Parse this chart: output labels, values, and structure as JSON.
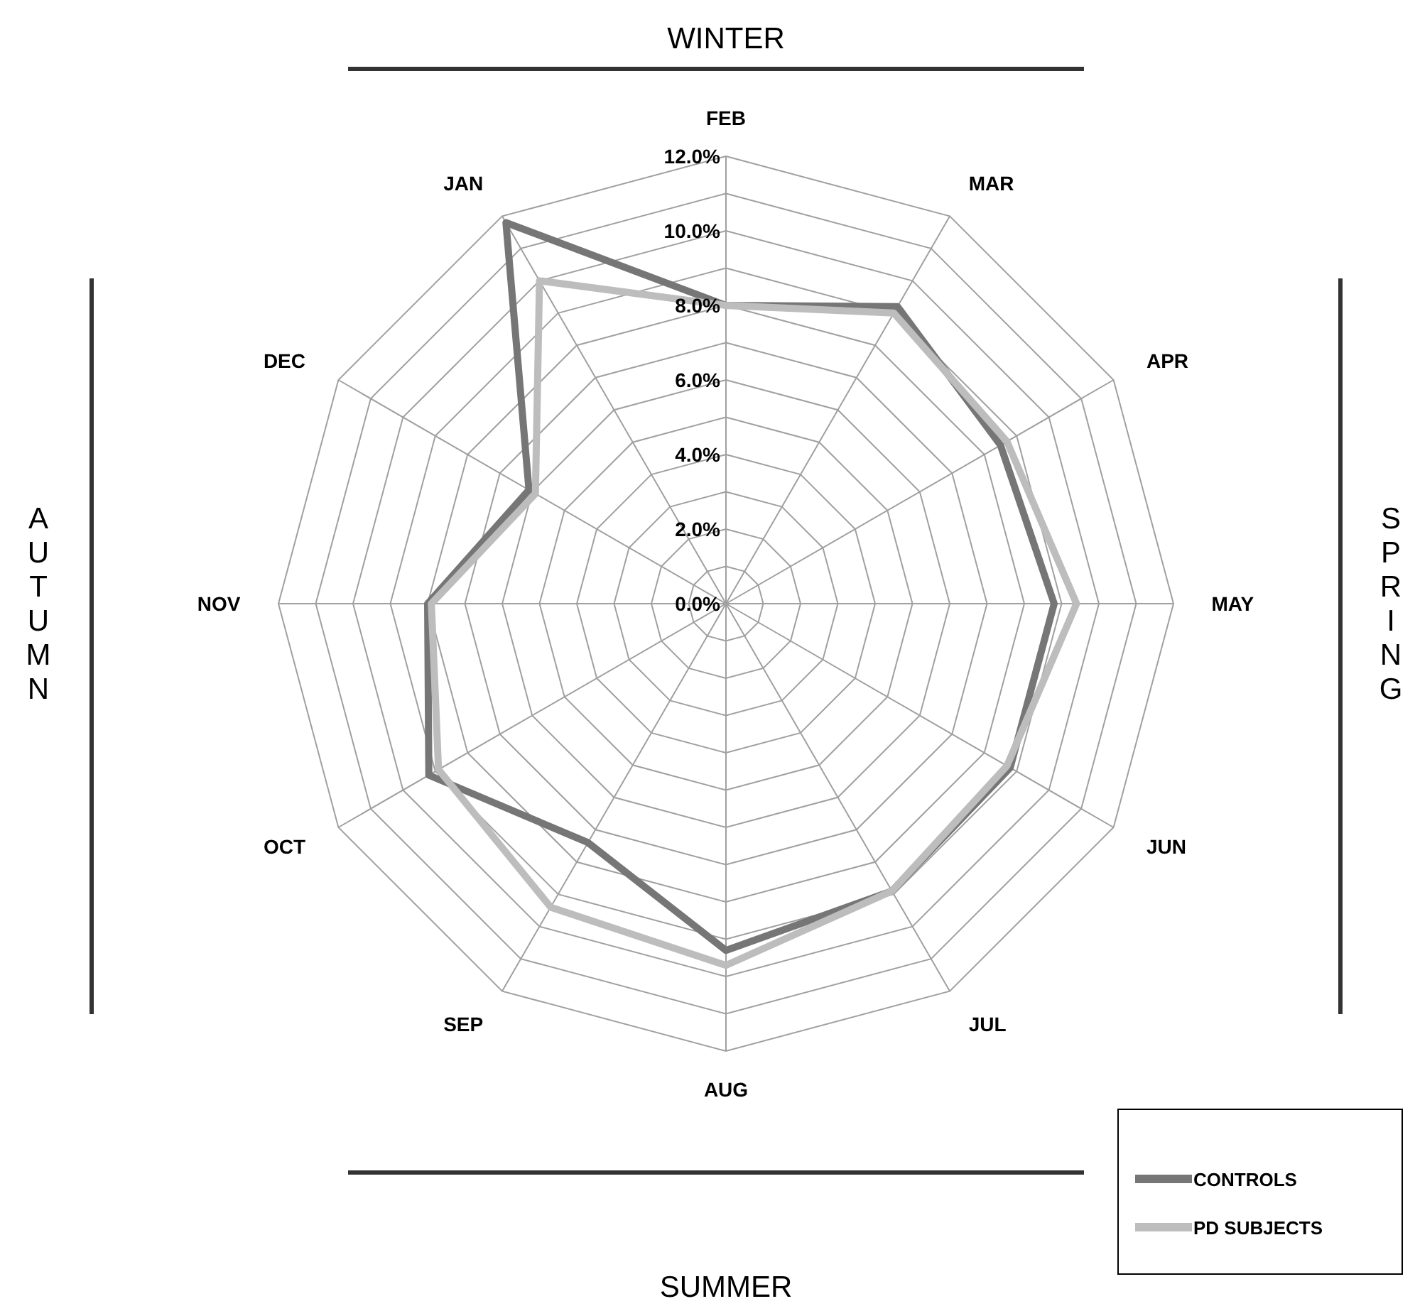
{
  "chart_data": {
    "type": "radar",
    "categories": [
      "FEB",
      "MAR",
      "APR",
      "MAY",
      "JUN",
      "JUL",
      "AUG",
      "SEP",
      "OCT",
      "NOV",
      "DEC",
      "JAN"
    ],
    "series": [
      {
        "name": "CONTROLS",
        "color": "#767676",
        "values": [
          8.0,
          9.2,
          8.5,
          8.8,
          8.8,
          8.9,
          9.3,
          7.4,
          9.2,
          8.0,
          6.1,
          11.8
        ]
      },
      {
        "name": "PD SUBJECTS",
        "color": "#bdbdbd",
        "values": [
          8.0,
          9.0,
          8.7,
          9.4,
          8.7,
          8.9,
          9.7,
          9.4,
          8.9,
          7.9,
          5.9,
          10.0
        ]
      }
    ],
    "ylim": [
      0,
      12
    ],
    "yticks": [
      {
        "value": 0,
        "label": "0.0%"
      },
      {
        "value": 2,
        "label": "2.0%"
      },
      {
        "value": 4,
        "label": "4.0%"
      },
      {
        "value": 6,
        "label": "6.0%"
      },
      {
        "value": 8,
        "label": "8.0%"
      },
      {
        "value": 10,
        "label": "10.0%"
      },
      {
        "value": 12,
        "label": "12.0%"
      }
    ],
    "grid": true,
    "legend": "bottom right",
    "annotations": [
      "WINTER",
      "SPRING",
      "SUMMER",
      "AUTUMN"
    ]
  }
}
